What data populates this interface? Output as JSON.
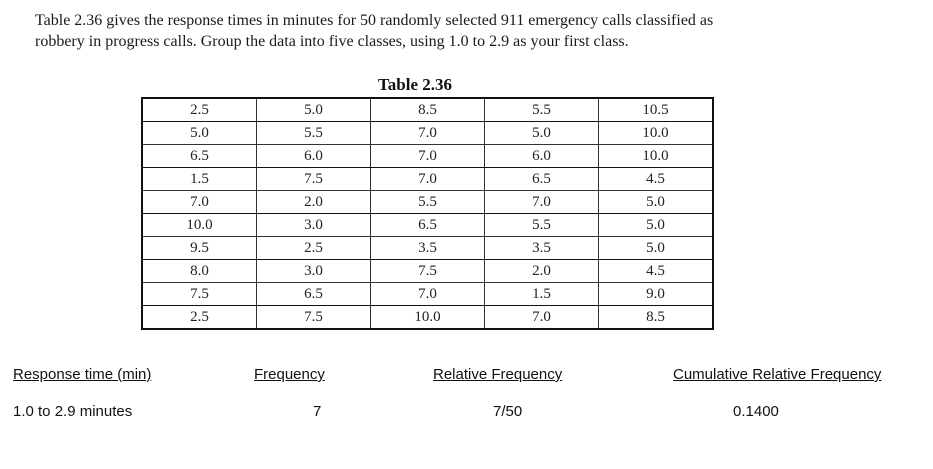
{
  "intro": {
    "line1": "Table 2.36 gives the response times in minutes for 50 randomly selected 911 emergency calls classified as",
    "line2": "robbery in progress calls. Group the data into five classes, using 1.0 to 2.9 as your first class."
  },
  "table_title": "Table 2.36",
  "table_rows": [
    [
      "2.5",
      "5.0",
      "8.5",
      "5.5",
      "10.5"
    ],
    [
      "5.0",
      "5.5",
      "7.0",
      "5.0",
      "10.0"
    ],
    [
      "6.5",
      "6.0",
      "7.0",
      "6.0",
      "10.0"
    ],
    [
      "1.5",
      "7.5",
      "7.0",
      "6.5",
      "4.5"
    ],
    [
      "7.0",
      "2.0",
      "5.5",
      "7.0",
      "5.0"
    ],
    [
      "10.0",
      "3.0",
      "6.5",
      "5.5",
      "5.0"
    ],
    [
      "9.5",
      "2.5",
      "3.5",
      "3.5",
      "5.0"
    ],
    [
      "8.0",
      "3.0",
      "7.5",
      "2.0",
      "4.5"
    ],
    [
      "7.5",
      "6.5",
      "7.0",
      "1.5",
      "9.0"
    ],
    [
      "2.5",
      "7.5",
      "10.0",
      "7.0",
      "8.5"
    ]
  ],
  "summary": {
    "headers": {
      "response_time": "Response time (min)",
      "frequency": "Frequency",
      "relative_frequency": "Relative Frequency",
      "cumulative_relative_frequency": "Cumulative Relative Frequency"
    },
    "rows": [
      {
        "response_time": "1.0 to 2.9 minutes",
        "frequency": "7",
        "relative_frequency": "7/50",
        "cumulative_relative_frequency": "0.1400"
      }
    ]
  }
}
